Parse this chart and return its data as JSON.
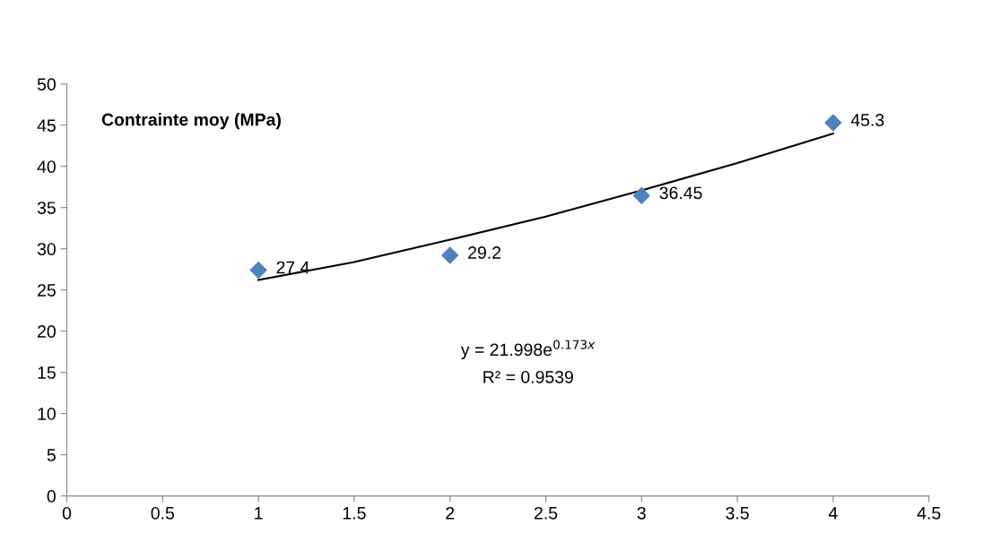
{
  "chart_data": {
    "type": "scatter",
    "title": "Contrainte moy (MPa)",
    "x": [
      1,
      2,
      3,
      4
    ],
    "series": [
      {
        "color": "#4f81bd",
        "marker": "diamond",
        "values": [
          27.4,
          29.2,
          36.45,
          45.3
        ],
        "value_labels": [
          "27.4",
          "29.2",
          "36.45",
          "45.3"
        ]
      },
      {
        "type": "line",
        "color": "#000000",
        "marker": "none",
        "line_style": "solid",
        "x": [
          1,
          1.5,
          2,
          2.5,
          3,
          3.5,
          4
        ],
        "values": [
          26.2,
          28.4,
          31.1,
          33.9,
          37.1,
          40.4,
          44.0
        ]
      }
    ],
    "annotations": [
      "y = 21.998e$^{0.173x}$",
      "R² = 0.9539"
    ],
    "xlim": [
      0,
      4.5
    ],
    "xticks": [
      0,
      0.5,
      1,
      1.5,
      2,
      2.5,
      3,
      3.5,
      4,
      4.5
    ],
    "ylim": [
      0,
      50
    ],
    "yticks": [
      0,
      5,
      10,
      15,
      20,
      25,
      30,
      35,
      40,
      45,
      50
    ],
    "grid": false,
    "legend": false
  }
}
